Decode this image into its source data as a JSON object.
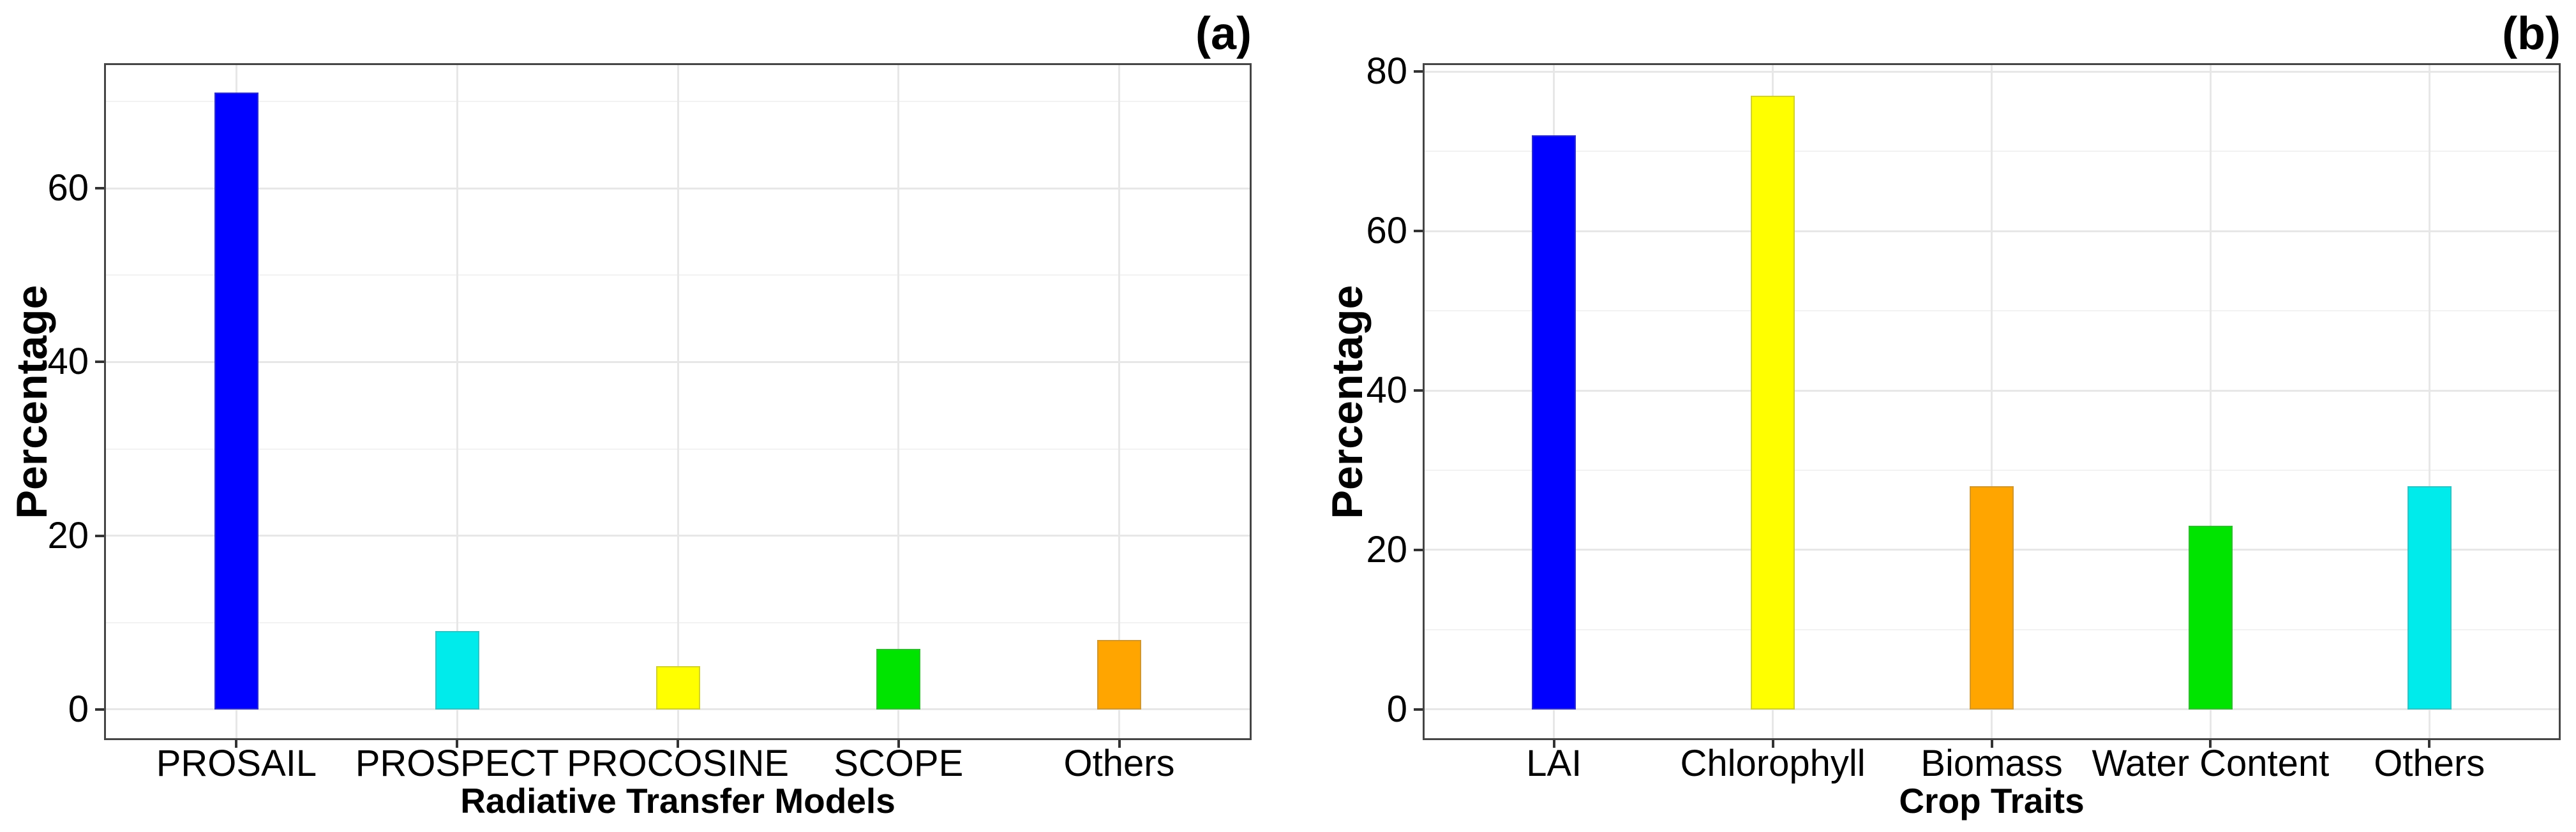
{
  "figure": {
    "background": "#ffffff",
    "panel_border_color": "#454545",
    "grid_major_color": "#e7e7e7",
    "grid_minor_color": "#f2f2f2",
    "tick_mark_color": "#333333",
    "text_color": "#000000"
  },
  "chart_data": [
    {
      "type": "bar",
      "panel_label": "(a)",
      "xlabel": "Radiative Transfer Models",
      "ylabel": "Percentage",
      "categories": [
        "PROSAIL",
        "PROSPECT",
        "PROCOSINE",
        "SCOPE",
        "Others"
      ],
      "values": [
        71,
        9,
        5,
        7,
        8
      ],
      "colors": [
        "#0000ff",
        "#00ebeb",
        "#ffff00",
        "#00e400",
        "#ffa500"
      ],
      "yticks": [
        0,
        20,
        40,
        60
      ],
      "yminorticks": [
        10,
        30,
        50,
        70
      ],
      "ylim": [
        -3.53,
        74.41
      ],
      "grid": "major+minor horizontal, major vertical at category centers",
      "legend": "none"
    },
    {
      "type": "bar",
      "panel_label": "(b)",
      "xlabel": "Crop Traits",
      "ylabel": "Percentage",
      "categories": [
        "LAI",
        "Chlorophyll",
        "Biomass",
        "Water Content",
        "Others"
      ],
      "values": [
        72,
        77,
        28,
        23,
        28
      ],
      "colors": [
        "#0000ff",
        "#ffff00",
        "#ffa500",
        "#00e400",
        "#00ebeb"
      ],
      "yticks": [
        0,
        20,
        40,
        60,
        80
      ],
      "yminorticks": [
        10,
        30,
        50,
        70
      ],
      "ylim": [
        -3.85,
        81.05
      ],
      "grid": "major+minor horizontal, major vertical at category centers",
      "legend": "none"
    }
  ]
}
